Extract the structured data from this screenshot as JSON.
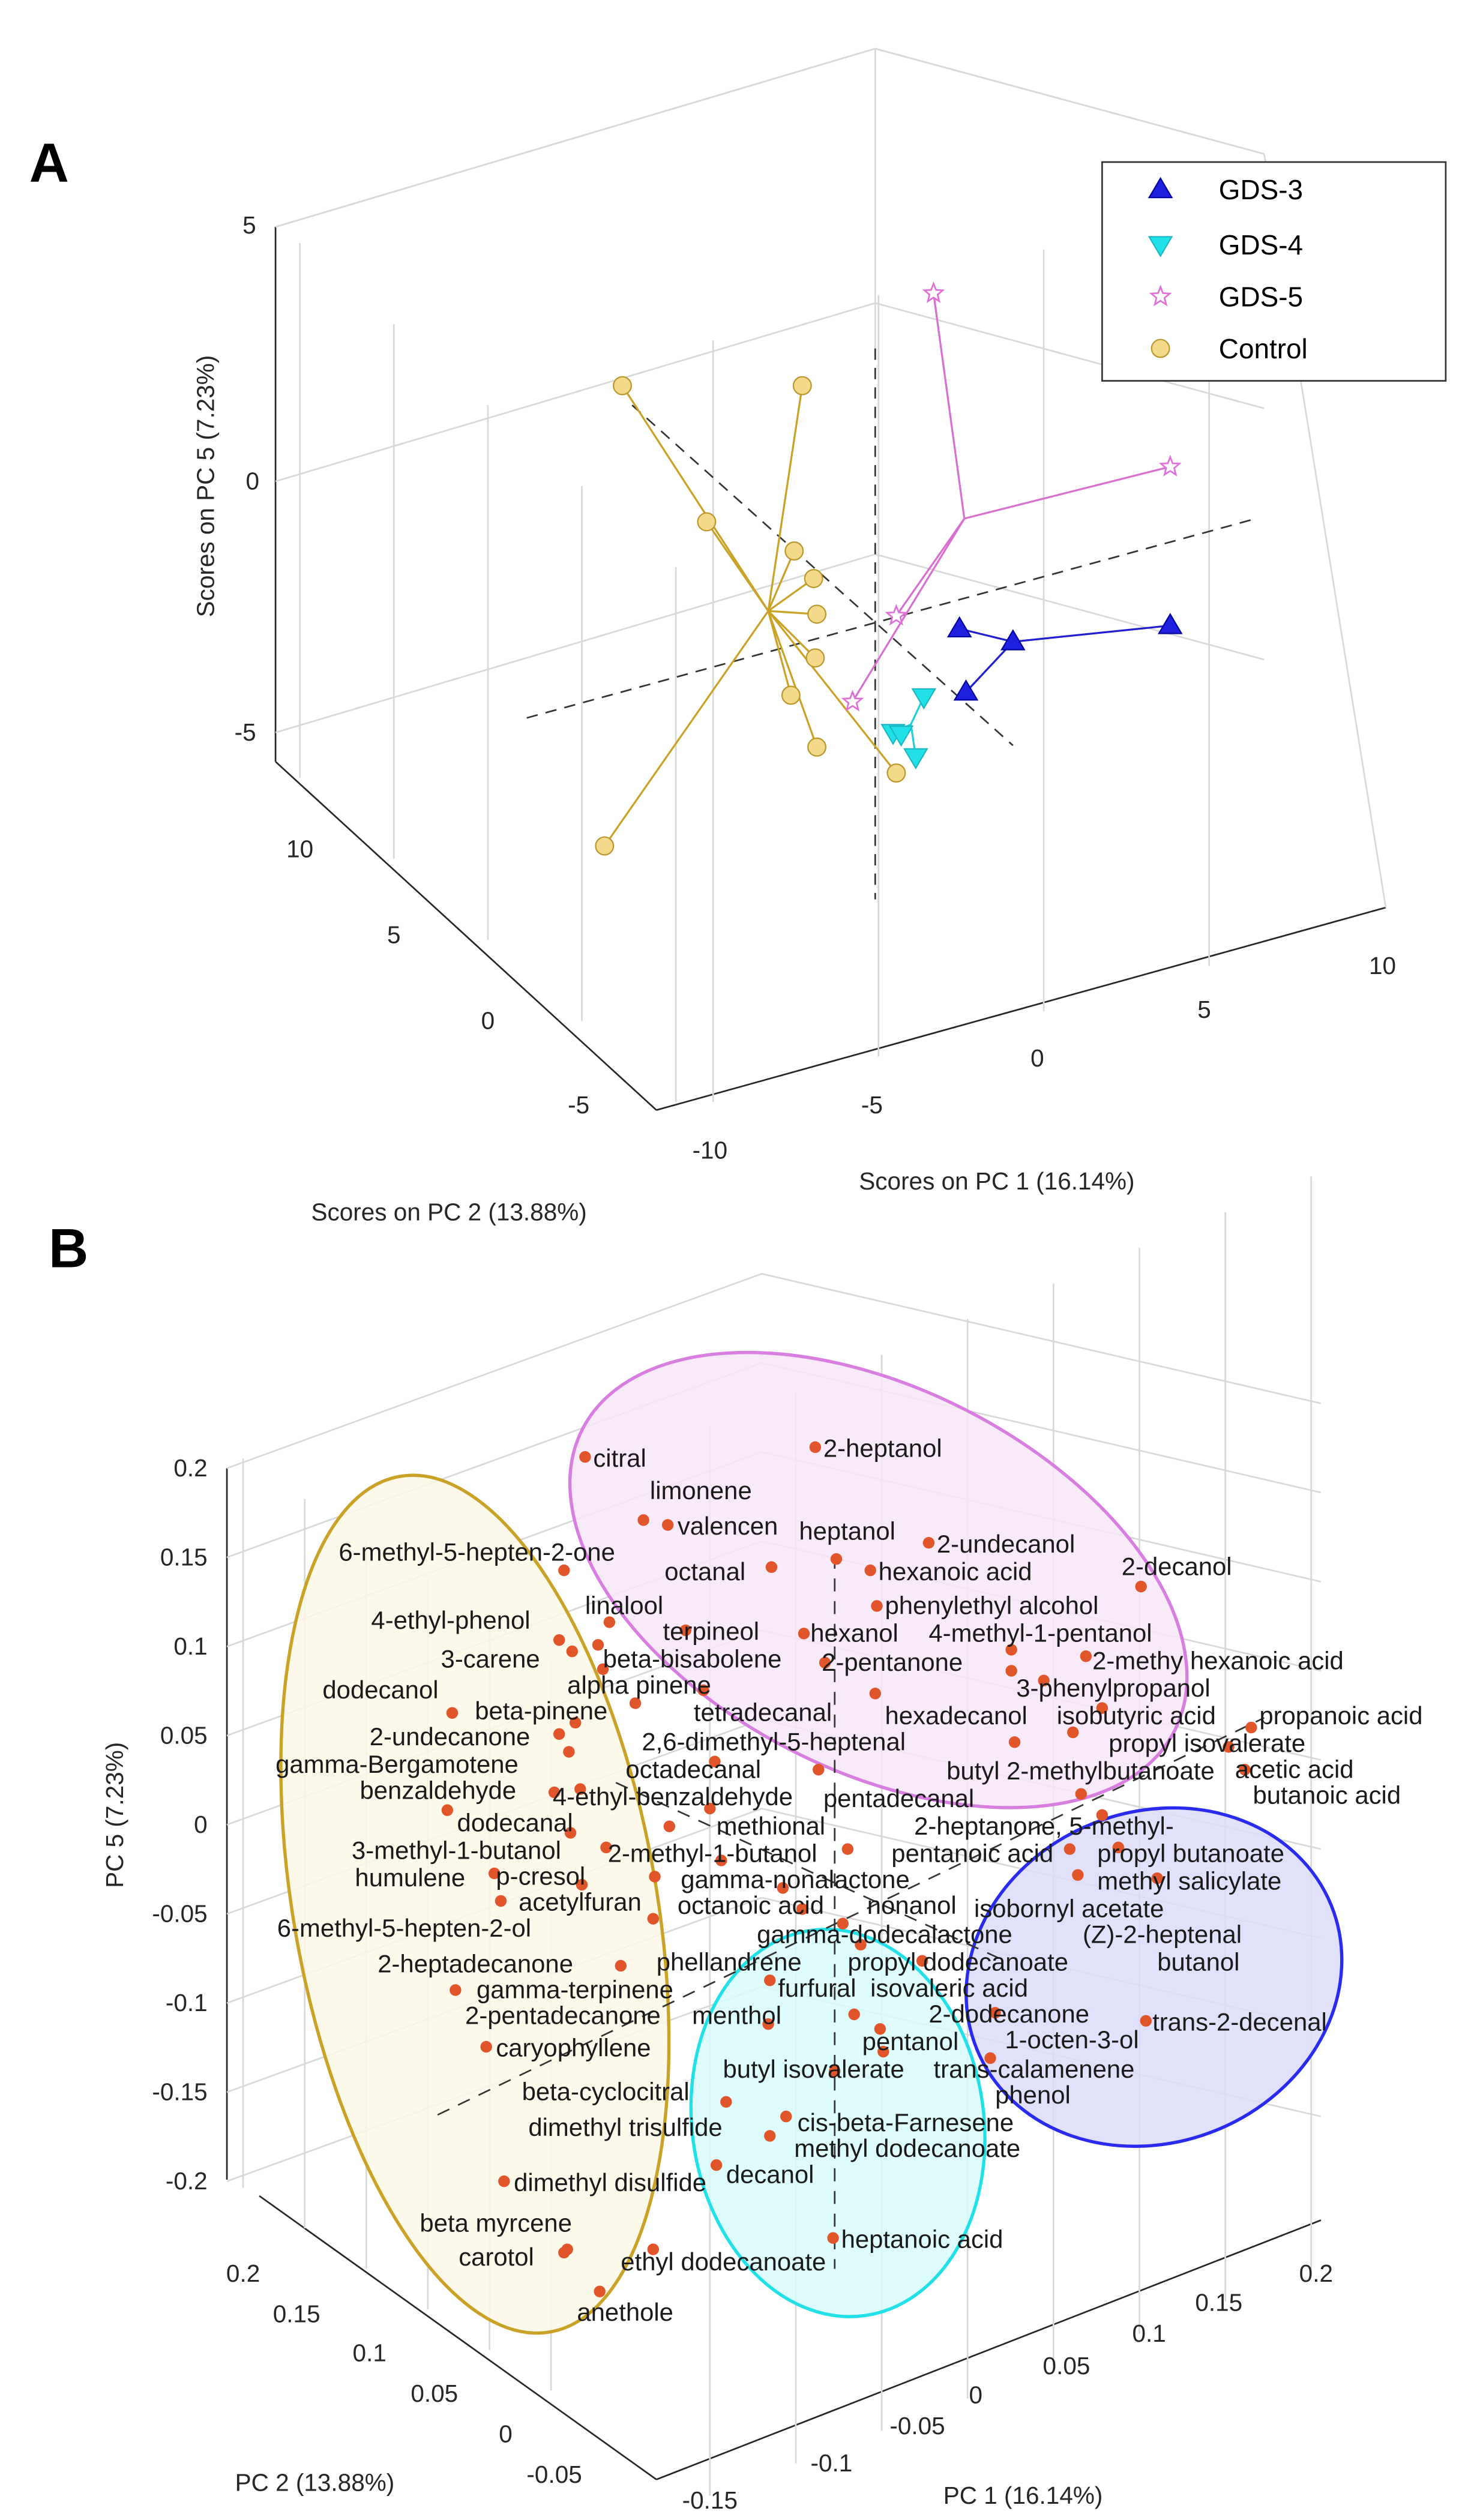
{
  "chart_data": [
    {
      "type": "scatter",
      "panel_label": "A",
      "title": "",
      "xlabel": "Scores on PC 1 (16.14%)",
      "ylabel": "Scores on PC 2 (13.88%)",
      "zlabel": "Scores on PC 5 (7.23%)",
      "x_ticks": [
        "-5",
        "0",
        "5",
        "10"
      ],
      "y_ticks": [
        "10",
        "5",
        "0",
        "-5",
        "-10"
      ],
      "z_ticks": [
        "5",
        "0",
        "-5"
      ],
      "legend_placement": "top-right",
      "series": [
        {
          "name": "GDS-3",
          "marker": "triangle-up",
          "color": "#1f1fe0",
          "n_points": 4
        },
        {
          "name": "GDS-4",
          "marker": "triangle-down",
          "color": "#22e0e8",
          "n_points": 4
        },
        {
          "name": "GDS-5",
          "marker": "pentagram",
          "color": "#e070d8",
          "n_points": 4
        },
        {
          "name": "Control",
          "marker": "circle",
          "color": "#f5d98a",
          "n_points": 11
        }
      ]
    },
    {
      "type": "scatter",
      "panel_label": "B",
      "xlabel": "PC 1 (16.14%)",
      "ylabel": "PC 2 (13.88%)",
      "zlabel": "PC 5 (7.23%)",
      "x_ticks": [
        "-0.15",
        "-0.1",
        "-0.05",
        "0",
        "0.05",
        "0.1",
        "0.15",
        "0.2"
      ],
      "y_ticks": [
        "0.2",
        "0.15",
        "0.1",
        "0.05",
        "0",
        "-0.05"
      ],
      "z_ticks": [
        "0.2",
        "0.15",
        "0.1",
        "0.05",
        "0",
        "-0.05",
        "-0.1",
        "-0.15",
        "-0.2"
      ],
      "point_color": "#e0562a",
      "group_ellipses": [
        {
          "group": "Control",
          "color": "#c9a227"
        },
        {
          "group": "GDS-5",
          "color": "#d77ee0"
        },
        {
          "group": "GDS-4",
          "color": "#22e0e8"
        },
        {
          "group": "GDS-3",
          "color": "#2a2af0"
        }
      ],
      "loadings": [
        "citral",
        "2-heptanol",
        "limonene",
        "valencen",
        "heptanol",
        "2-undecanol",
        "6-methyl-5-hepten-2-one",
        "octanal",
        "hexanoic acid",
        "2-decanol",
        "linalool",
        "terpineol",
        "phenylethyl alcohol",
        "4-ethyl-phenol",
        "hexanol",
        "4-methyl-1-pentanol",
        "2-methy  hexanoic acid",
        "beta-bisabolene",
        "3-carene",
        "2-pentanone",
        "3-phenylpropanol",
        "alpha pinene",
        "isobutyric acid",
        "tetradecanal",
        "hexadecanol",
        "dodecanol",
        "propyl isovalerate",
        "beta-pinene",
        "2,6-dimethyl-5-heptenal",
        "butyl 2-methylbutanoate",
        "propanoic acid",
        "octadecanal",
        "2-undecanone",
        "pentadecanal",
        "acetic acid",
        "gamma-Bergamotene",
        "2-heptanone, 5-methyl-",
        "butanoic acid",
        "benzaldehyde",
        "4-ethyl-benzaldehyde",
        "pentanoic acid",
        "propyl butanoate",
        "methional",
        "dodecanal",
        "gamma-nonalactone",
        "methyl salicylate",
        "3-methyl-1-butanol",
        "nonanol",
        "isobornyl acetate",
        "p-cresol",
        "2-methyl-1-butanol",
        "humulene",
        "(Z)-2-heptenal",
        "acetylfuran",
        "octanoic acid",
        "gamma-dodecalactone",
        "butanol",
        "6-methyl-5-hepten-2-ol",
        "phellandrene",
        "propyl dodecanoate",
        "gamma-terpinene",
        "isovaleric acid",
        "2-heptadecanone",
        "2-dodecanone",
        "furfural",
        "2-pentadecanone",
        "menthol",
        "1-octen-3-ol",
        "pentanol",
        "trans-2-decenal",
        "trans-calamenene",
        "caryophyllene",
        "phenol",
        "butyl isovalerate",
        "cis-beta-Farnesene",
        "beta-cyclocitral",
        "methyl dodecanoate",
        "dimethyl trisulfide",
        "decanol",
        "dimethyl disulfide",
        "beta myrcene",
        "heptanoic acid",
        "carotol",
        "ethyl dodecanoate",
        "anethole"
      ]
    }
  ]
}
